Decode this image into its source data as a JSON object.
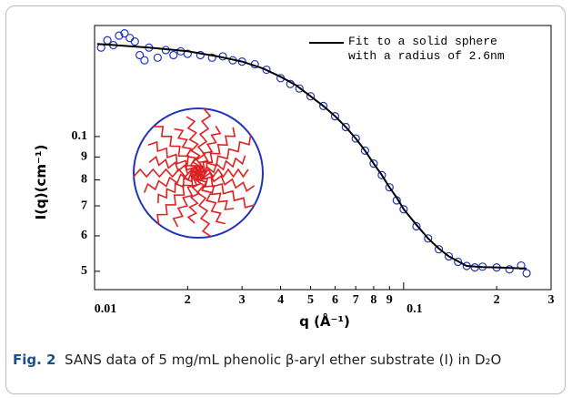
{
  "chart_data": {
    "type": "scatter-fit",
    "x_label": "q (Å⁻¹)",
    "y_label": "I(q)(cm⁻¹)",
    "xlim": [
      0.01,
      0.3
    ],
    "ylim": [
      0.0455,
      0.177
    ],
    "log_x": true,
    "log_y": true,
    "xticks": [
      {
        "value": 0.01,
        "label": "0.01"
      },
      {
        "value": 0.02,
        "label": "2"
      },
      {
        "value": 0.03,
        "label": "3"
      },
      {
        "value": 0.04,
        "label": "4"
      },
      {
        "value": 0.05,
        "label": "5"
      },
      {
        "value": 0.06,
        "label": "6"
      },
      {
        "value": 0.07,
        "label": "7"
      },
      {
        "value": 0.08,
        "label": "8"
      },
      {
        "value": 0.09,
        "label": "9"
      },
      0.1,
      {
        "value": 0.2,
        "label": "2"
      },
      {
        "value": 0.3,
        "label": "3"
      }
    ],
    "yticks": [
      {
        "value": 0.05,
        "label": "5"
      },
      {
        "value": 0.06,
        "label": "6"
      },
      {
        "value": 0.07,
        "label": "7"
      },
      {
        "value": 0.08,
        "label": "8"
      },
      {
        "value": 0.09,
        "label": "9"
      },
      0.1
    ],
    "series": [
      {
        "kind": "points",
        "color": "#2233bb",
        "x": [
          0.0105,
          0.011,
          0.0115,
          0.012,
          0.0125,
          0.013,
          0.0135,
          0.014,
          0.0145,
          0.015,
          0.016,
          0.017,
          0.018,
          0.019,
          0.02,
          0.022,
          0.024,
          0.026,
          0.028,
          0.03,
          0.033,
          0.036,
          0.04,
          0.043,
          0.046,
          0.05,
          0.055,
          0.06,
          0.065,
          0.07,
          0.075,
          0.08,
          0.085,
          0.09,
          0.095,
          0.1,
          0.11,
          0.12,
          0.13,
          0.14,
          0.15,
          0.16,
          0.17,
          0.18,
          0.2,
          0.22,
          0.24,
          0.25
        ],
        "values": [
          0.158,
          0.164,
          0.16,
          0.168,
          0.17,
          0.166,
          0.163,
          0.152,
          0.148,
          0.158,
          0.15,
          0.156,
          0.152,
          0.155,
          0.153,
          0.152,
          0.15,
          0.151,
          0.148,
          0.147,
          0.145,
          0.141,
          0.135,
          0.131,
          0.128,
          0.123,
          0.117,
          0.111,
          0.105,
          0.099,
          0.093,
          0.087,
          0.082,
          0.077,
          0.072,
          0.0688,
          0.063,
          0.0592,
          0.056,
          0.054,
          0.0525,
          0.0514,
          0.051,
          0.0512,
          0.051,
          0.0505,
          0.0515,
          0.0495
        ]
      },
      {
        "kind": "line",
        "name": "Fit to a solid sphere with a radius of 2.6nm",
        "color": "#000000",
        "x": [
          0.0102,
          0.015,
          0.02,
          0.025,
          0.03,
          0.035,
          0.04,
          0.045,
          0.05,
          0.055,
          0.06,
          0.065,
          0.07,
          0.075,
          0.08,
          0.085,
          0.09,
          0.095,
          0.1,
          0.11,
          0.12,
          0.13,
          0.14,
          0.16,
          0.18,
          0.2,
          0.25
        ],
        "values": [
          0.161,
          0.158,
          0.155,
          0.151,
          0.147,
          0.142,
          0.136,
          0.13,
          0.123,
          0.117,
          0.111,
          0.105,
          0.099,
          0.093,
          0.087,
          0.082,
          0.077,
          0.073,
          0.0688,
          0.0635,
          0.0592,
          0.0562,
          0.054,
          0.0514,
          0.0511,
          0.051,
          0.0507
        ]
      }
    ]
  },
  "caption": {
    "label": "Fig. 2",
    "text": "SANS data of 5 mg/mL phenolic β-aryl ether substrate (I) in D₂O"
  }
}
